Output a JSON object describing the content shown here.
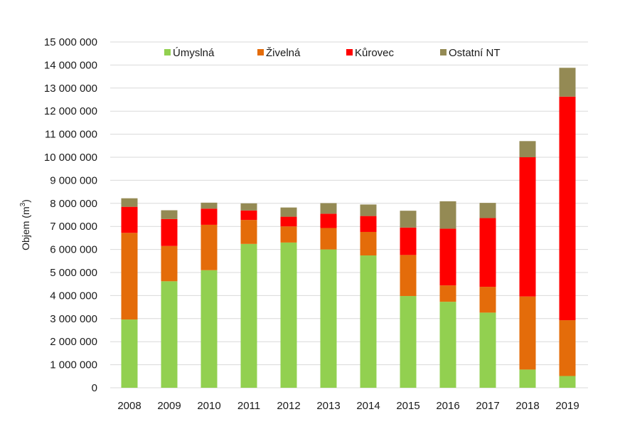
{
  "chart_data": {
    "type": "bar",
    "stacked": true,
    "title": "",
    "xlabel": "",
    "ylabel": "Objem (m³)",
    "ylabel_base": "Objem (m",
    "ylabel_sup": "3",
    "ylabel_tail": ")",
    "ylim": [
      0,
      15000000
    ],
    "ytick_step": 1000000,
    "yticks": [
      "0",
      "1 000 000",
      "2 000 000",
      "3 000 000",
      "4 000 000",
      "5 000 000",
      "6 000 000",
      "7 000 000",
      "8 000 000",
      "9 000 000",
      "10 000 000",
      "11 000 000",
      "12 000 000",
      "13 000 000",
      "14 000 000",
      "15 000 000"
    ],
    "grid": true,
    "legend_position": "top",
    "categories": [
      "2008",
      "2009",
      "2010",
      "2011",
      "2012",
      "2013",
      "2014",
      "2015",
      "2016",
      "2017",
      "2018",
      "2019"
    ],
    "series": [
      {
        "name": "Úmyslná",
        "color": "#92d050",
        "values": [
          2960000,
          4620000,
          5100000,
          6240000,
          6300000,
          6000000,
          5740000,
          3980000,
          3730000,
          3260000,
          790000,
          510000
        ]
      },
      {
        "name": "Živelná",
        "color": "#e46c0a",
        "values": [
          3760000,
          1530000,
          1970000,
          1040000,
          700000,
          930000,
          1020000,
          1780000,
          710000,
          1120000,
          3170000,
          2420000
        ]
      },
      {
        "name": "Kůrovec",
        "color": "#ff0000",
        "values": [
          1130000,
          1170000,
          700000,
          410000,
          420000,
          620000,
          690000,
          1190000,
          2460000,
          2980000,
          6040000,
          9700000
        ]
      },
      {
        "name": "Ostatní NT",
        "color": "#948a54",
        "values": [
          370000,
          380000,
          260000,
          310000,
          400000,
          460000,
          500000,
          730000,
          1190000,
          660000,
          700000,
          1250000
        ]
      }
    ]
  }
}
